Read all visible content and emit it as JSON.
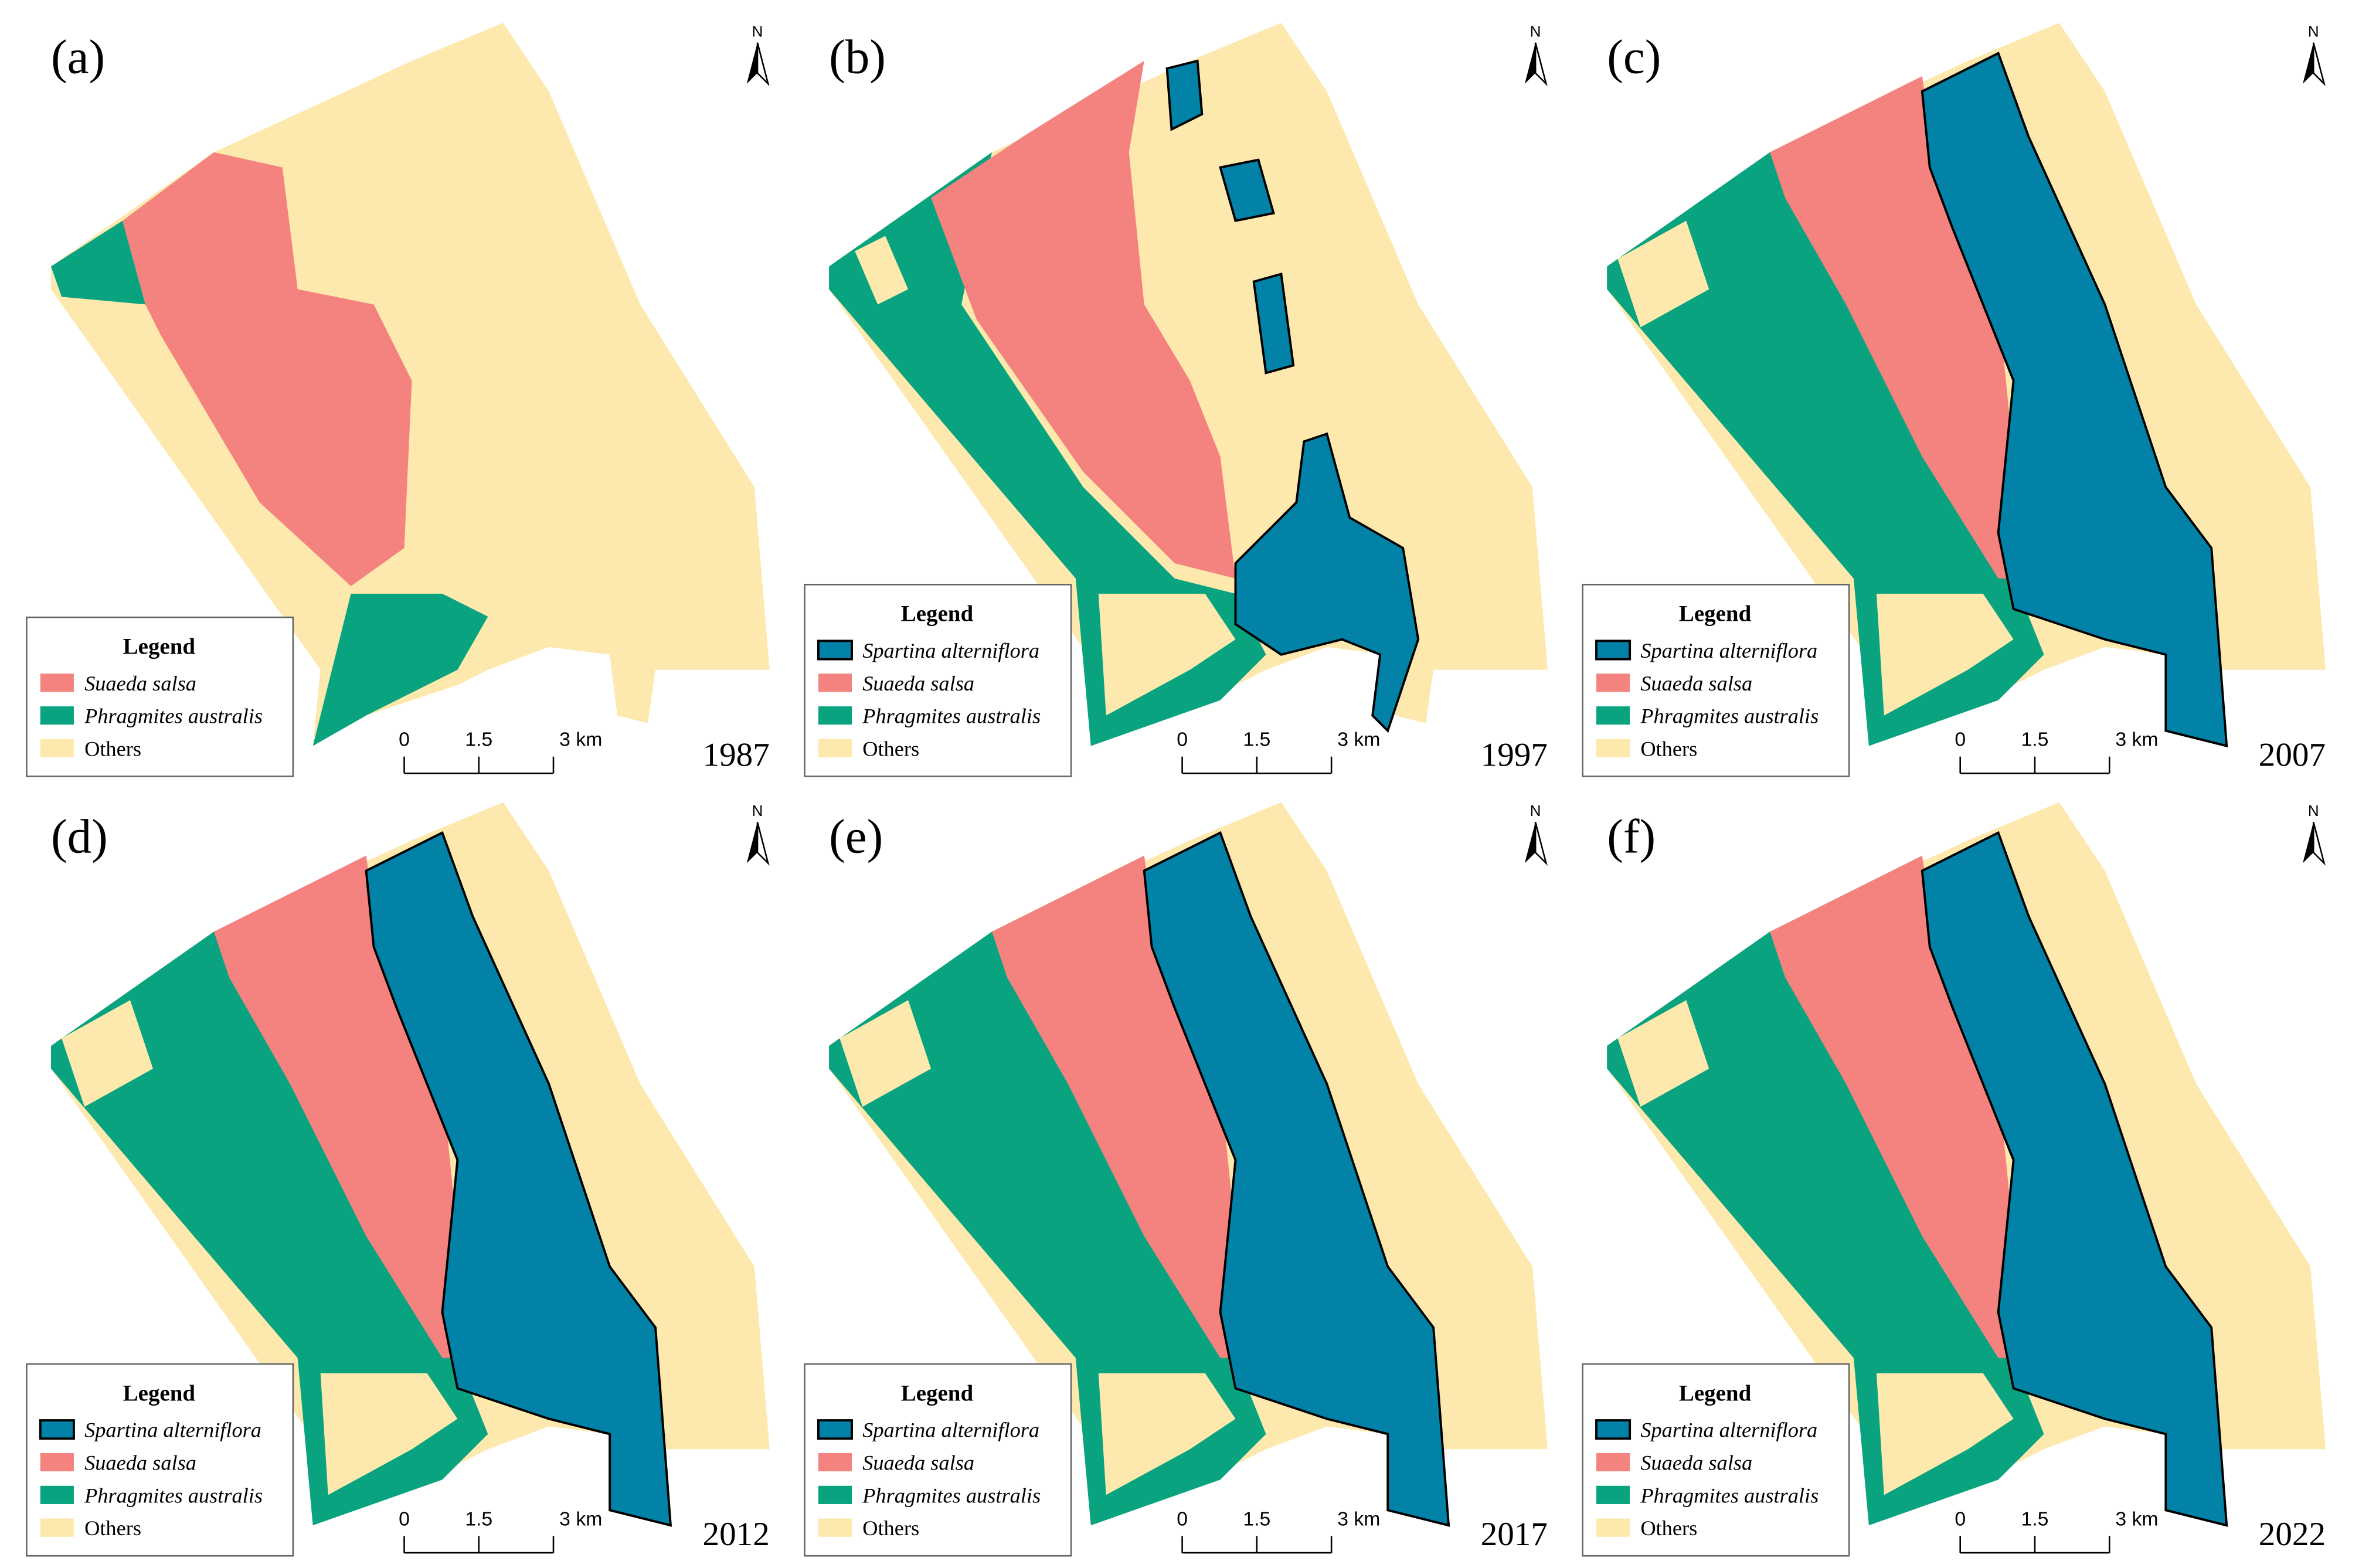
{
  "panels": [
    {
      "label": "(a)",
      "year": "1987",
      "north": "N",
      "legend_title": "Legend",
      "legend_items": [
        {
          "name": "Suaeda salsa",
          "color": "#f4827e"
        },
        {
          "name": "Phragmites australis",
          "color": "#0aa37f"
        },
        {
          "name": "Others",
          "color": "#fde9ad"
        }
      ],
      "scale_labels": [
        "0",
        "1.5",
        "3 km"
      ]
    },
    {
      "label": "(b)",
      "year": "1997",
      "north": "N",
      "legend_title": "Legend",
      "legend_items": [
        {
          "name": "Spartina alterniflora",
          "color": "#0382a8"
        },
        {
          "name": "Suaeda salsa",
          "color": "#f4827e"
        },
        {
          "name": "Phragmites australis",
          "color": "#0aa37f"
        },
        {
          "name": "Others",
          "color": "#fde9ad"
        }
      ],
      "scale_labels": [
        "0",
        "1.5",
        "3 km"
      ]
    },
    {
      "label": "(c)",
      "year": "2007",
      "north": "N",
      "legend_title": "Legend",
      "legend_items": [
        {
          "name": "Spartina alterniflora",
          "color": "#0382a8"
        },
        {
          "name": "Suaeda salsa",
          "color": "#f4827e"
        },
        {
          "name": "Phragmites australis",
          "color": "#0aa37f"
        },
        {
          "name": "Others",
          "color": "#fde9ad"
        }
      ],
      "scale_labels": [
        "0",
        "1.5",
        "3 km"
      ]
    },
    {
      "label": "(d)",
      "year": "2012",
      "north": "N",
      "legend_title": "Legend",
      "legend_items": [
        {
          "name": "Spartina alterniflora",
          "color": "#0382a8"
        },
        {
          "name": "Suaeda salsa",
          "color": "#f4827e"
        },
        {
          "name": "Phragmites australis",
          "color": "#0aa37f"
        },
        {
          "name": "Others",
          "color": "#fde9ad"
        }
      ],
      "scale_labels": [
        "0",
        "1.5",
        "3 km"
      ]
    },
    {
      "label": "(e)",
      "year": "2017",
      "north": "N",
      "legend_title": "Legend",
      "legend_items": [
        {
          "name": "Spartina alterniflora",
          "color": "#0382a8"
        },
        {
          "name": "Suaeda salsa",
          "color": "#f4827e"
        },
        {
          "name": "Phragmites australis",
          "color": "#0aa37f"
        },
        {
          "name": "Others",
          "color": "#fde9ad"
        }
      ],
      "scale_labels": [
        "0",
        "1.5",
        "3 km"
      ]
    },
    {
      "label": "(f)",
      "year": "2022",
      "north": "N",
      "legend_title": "Legend",
      "legend_items": [
        {
          "name": "Spartina alterniflora",
          "color": "#0382a8"
        },
        {
          "name": "Suaeda salsa",
          "color": "#f4827e"
        },
        {
          "name": "Phragmites australis",
          "color": "#0aa37f"
        },
        {
          "name": "Others",
          "color": "#fde9ad"
        }
      ],
      "scale_labels": [
        "0",
        "1.5",
        "3 km"
      ]
    }
  ]
}
